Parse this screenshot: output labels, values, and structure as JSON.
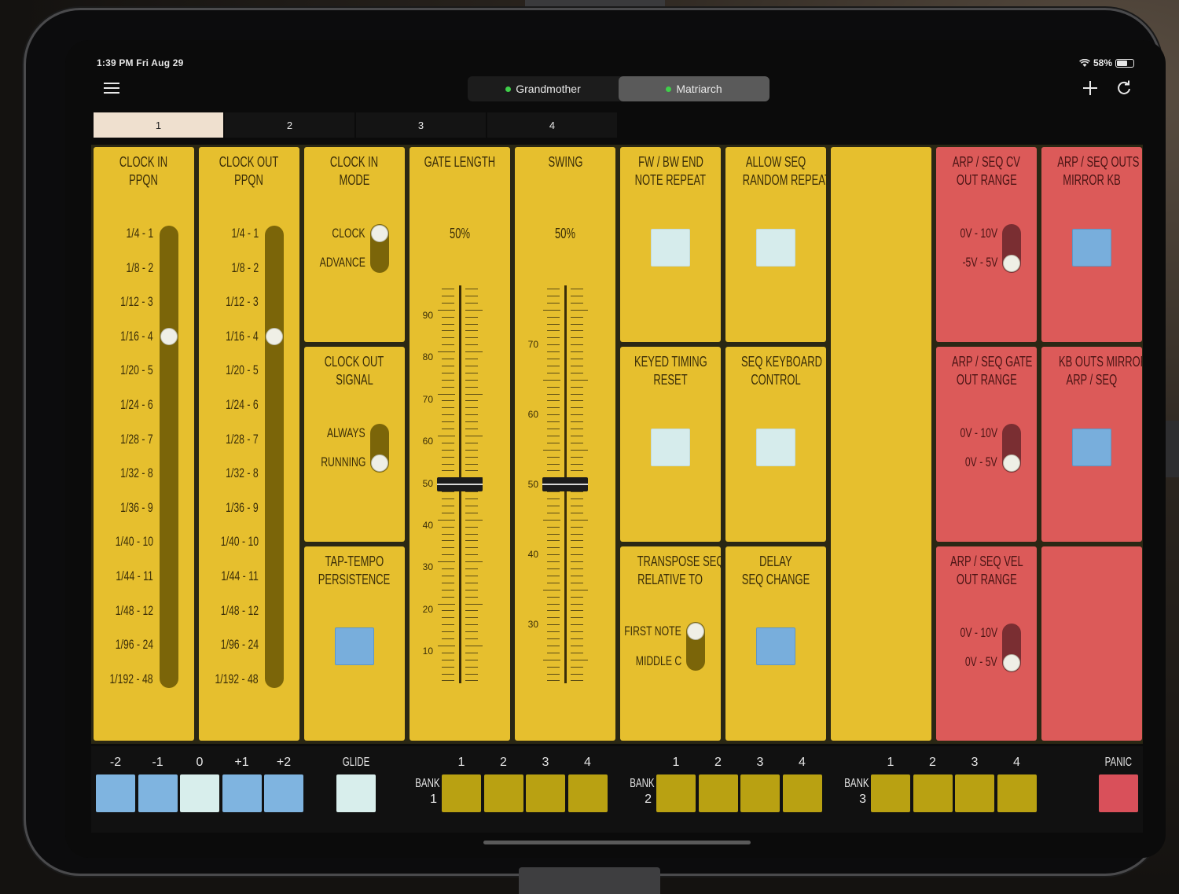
{
  "status_bar": {
    "time": "1:39 PM  Fri Aug 29",
    "battery": "58%",
    "battery_level": 0.58
  },
  "header": {
    "icons": {
      "menu": "hamburger-menu-icon",
      "add": "plus-icon",
      "refresh": "refresh-icon"
    },
    "devices": [
      {
        "label": "Grandmother",
        "active": false,
        "dot_color": "#3fcf4a"
      },
      {
        "label": "Matriarch",
        "active": true,
        "dot_color": "#3fcf4a"
      }
    ]
  },
  "page_tabs": [
    "1",
    "2",
    "3",
    "4"
  ],
  "active_page_tab": "1",
  "colors": {
    "yellow_tile": "#e6bf2e",
    "red_tile": "#dc5a59",
    "track_yellow": "#7b6509",
    "track_red": "#7a2e32",
    "square_pale": "#d6ecec",
    "square_blue": "#78aedc",
    "bank_button": "#b9a112",
    "panic_button": "#d9505a"
  },
  "tiles": {
    "clock_in_ppqn": {
      "title_1": "CLOCK IN",
      "title_2": "PPQN",
      "options": [
        "1/4 - 1",
        "1/8 - 2",
        "1/12 - 3",
        "1/16 - 4",
        "1/20 - 5",
        "1/24 - 6",
        "1/28 - 7",
        "1/32 - 8",
        "1/36 - 9",
        "1/40 - 10",
        "1/44 - 11",
        "1/48 - 12",
        "1/96 - 24",
        "1/192 - 48"
      ],
      "selected": "1/16 - 4"
    },
    "clock_out_ppqn": {
      "title_1": "CLOCK OUT",
      "title_2": "PPQN",
      "options": [
        "1/4 - 1",
        "1/8 - 2",
        "1/12 - 3",
        "1/16 - 4",
        "1/20 - 5",
        "1/24 - 6",
        "1/28 - 7",
        "1/32 - 8",
        "1/36 - 9",
        "1/40 - 10",
        "1/44 - 11",
        "1/48 - 12",
        "1/96 - 24",
        "1/192 - 48"
      ],
      "selected": "1/16 - 4"
    },
    "clock_in_mode": {
      "title_1": "CLOCK IN",
      "title_2": "MODE",
      "option_a": "CLOCK",
      "option_b": "ADVANCE",
      "selected": "CLOCK"
    },
    "clock_out_signal": {
      "title_1": "CLOCK OUT",
      "title_2": "SIGNAL",
      "option_a": "ALWAYS",
      "option_b": "RUNNING",
      "selected": "RUNNING"
    },
    "tap_tempo": {
      "title_1": "TAP-TEMPO",
      "title_2": "PERSISTENCE",
      "state": "on"
    },
    "gate_length": {
      "title": "GATE LENGTH",
      "value": "50%",
      "scale": [
        "90",
        "80",
        "70",
        "60",
        "50",
        "40",
        "30",
        "20",
        "10"
      ]
    },
    "swing": {
      "title": "SWING",
      "value": "50%",
      "scale": [
        "70",
        "60",
        "50",
        "40",
        "30"
      ]
    },
    "fw_bw": {
      "title_1": "FW / BW END",
      "title_2": "NOTE REPEAT",
      "state": "off"
    },
    "allow_seq": {
      "title_1": "ALLOW SEQ",
      "title_2": "RANDOM REPEAT",
      "state": "off"
    },
    "keyed_timing": {
      "title_1": "KEYED TIMING",
      "title_2": "RESET",
      "state": "off"
    },
    "seq_keyboard": {
      "title_1": "SEQ KEYBOARD",
      "title_2": "CONTROL",
      "state": "off"
    },
    "transpose_seq": {
      "title_1": "TRANSPOSE SEQ",
      "title_2": "RELATIVE TO",
      "option_a": "FIRST NOTE",
      "option_b": "MIDDLE C",
      "selected": "FIRST NOTE"
    },
    "delay_seq": {
      "title_1": "DELAY",
      "title_2": "SEQ CHANGE",
      "state": "on"
    },
    "arp_seq_cv": {
      "title_1": "ARP / SEQ CV",
      "title_2": "OUT RANGE",
      "option_a": "0V - 10V",
      "option_b": "-5V - 5V",
      "selected": "-5V - 5V"
    },
    "arp_seq_outs": {
      "title_1": "ARP / SEQ OUTS",
      "title_2": "MIRROR KB",
      "state": "on"
    },
    "arp_seq_gate": {
      "title_1": "ARP / SEQ GATE",
      "title_2": "OUT RANGE",
      "option_a": "0V - 10V",
      "option_b": "0V - 5V",
      "selected": "0V - 5V"
    },
    "kb_outs": {
      "title_1": "KB OUTS MIRROR",
      "title_2": "ARP / SEQ",
      "state": "on"
    },
    "arp_seq_vel": {
      "title_1": "ARP / SEQ VEL",
      "title_2": "OUT RANGE",
      "option_a": "0V - 10V",
      "option_b": "0V - 5V",
      "selected": "0V - 5V"
    }
  },
  "bottom": {
    "octave_labels": [
      "-2",
      "-1",
      "0",
      "+1",
      "+2"
    ],
    "octave_selected": "0",
    "glide_label": "GLIDE",
    "bank_label": "BANK",
    "banks": [
      {
        "number": "1",
        "slots": [
          "1",
          "2",
          "3",
          "4"
        ]
      },
      {
        "number": "2",
        "slots": [
          "1",
          "2",
          "3",
          "4"
        ]
      },
      {
        "number": "3",
        "slots": [
          "1",
          "2",
          "3",
          "4"
        ]
      }
    ],
    "panic_label": "PANIC"
  }
}
